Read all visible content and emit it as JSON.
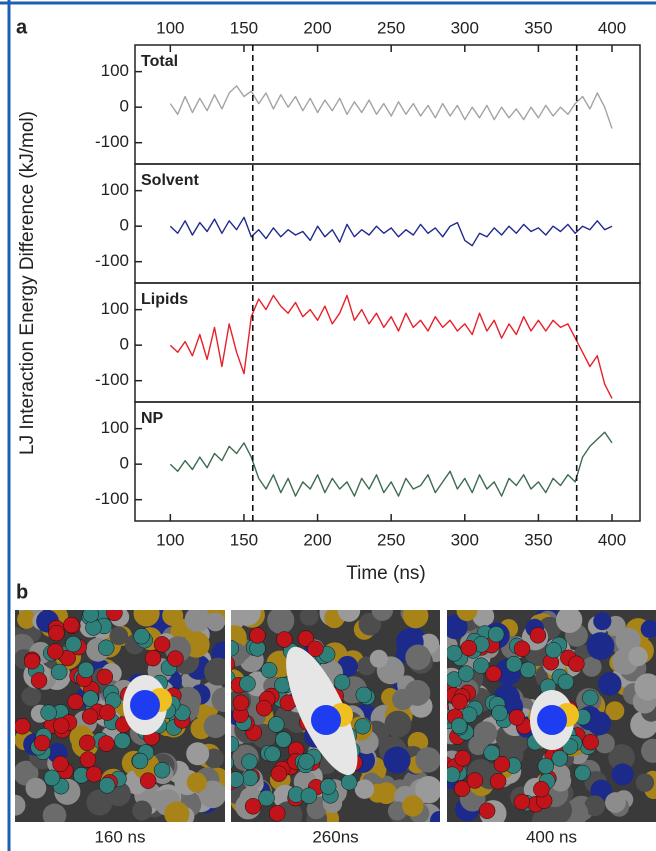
{
  "panel_labels": [
    "a",
    "b"
  ],
  "chart_data": {
    "type": "line",
    "xlabel": "Time (ns)",
    "ylabel": "LJ Interaction Energy Difference (kJ/mol)",
    "x": [
      100,
      105,
      110,
      115,
      120,
      125,
      130,
      135,
      140,
      145,
      150,
      155,
      160,
      165,
      170,
      175,
      180,
      185,
      190,
      195,
      200,
      205,
      210,
      215,
      220,
      225,
      230,
      235,
      240,
      245,
      250,
      255,
      260,
      265,
      270,
      275,
      280,
      285,
      290,
      295,
      300,
      305,
      310,
      315,
      320,
      325,
      330,
      335,
      340,
      345,
      350,
      355,
      360,
      365,
      370,
      375,
      380,
      385,
      390,
      395,
      400
    ],
    "xlim": [
      76,
      419
    ],
    "xticks": [
      100,
      150,
      200,
      250,
      300,
      350,
      400
    ],
    "ylim": [
      -160,
      175
    ],
    "yticks": [
      -100,
      0,
      100
    ],
    "vlines": [
      156,
      376
    ],
    "series": [
      {
        "name": "Total",
        "color": "#a3a3a3",
        "values": [
          10,
          -20,
          30,
          -15,
          25,
          -10,
          35,
          -5,
          40,
          60,
          30,
          45,
          10,
          40,
          -5,
          35,
          0,
          30,
          -10,
          25,
          -15,
          20,
          -10,
          25,
          -20,
          15,
          -15,
          20,
          -20,
          10,
          -25,
          15,
          -20,
          10,
          -25,
          5,
          -30,
          10,
          -25,
          5,
          -35,
          0,
          -30,
          5,
          -35,
          0,
          -30,
          -5,
          -35,
          0,
          -30,
          5,
          -25,
          0,
          -20,
          10,
          30,
          -5,
          40,
          0,
          -60
        ]
      },
      {
        "name": "Solvent",
        "color": "#1f2a8c",
        "values": [
          0,
          -20,
          15,
          -25,
          10,
          -15,
          20,
          -20,
          15,
          -10,
          25,
          -30,
          -10,
          -35,
          -5,
          -30,
          -10,
          -25,
          -15,
          -40,
          0,
          -30,
          -10,
          -45,
          5,
          -30,
          -10,
          -25,
          0,
          -20,
          -5,
          -30,
          -10,
          -25,
          5,
          -20,
          -5,
          -30,
          0,
          10,
          -40,
          -55,
          -20,
          -30,
          -5,
          -25,
          0,
          -20,
          5,
          -15,
          -5,
          -25,
          0,
          -15,
          5,
          -20,
          0,
          -10,
          15,
          -10,
          0
        ]
      },
      {
        "name": "Lipids",
        "color": "#e8202a",
        "values": [
          0,
          -20,
          10,
          -30,
          30,
          -40,
          50,
          -60,
          60,
          -20,
          -80,
          80,
          130,
          100,
          140,
          110,
          90,
          120,
          80,
          100,
          70,
          110,
          60,
          90,
          140,
          70,
          100,
          60,
          90,
          50,
          80,
          40,
          90,
          50,
          70,
          40,
          80,
          50,
          70,
          40,
          60,
          30,
          90,
          40,
          70,
          20,
          60,
          30,
          80,
          40,
          70,
          40,
          70,
          50,
          60,
          20,
          -20,
          -60,
          -30,
          -110,
          -150
        ]
      },
      {
        "name": "NP",
        "color": "#3d6b4f",
        "values": [
          0,
          -20,
          10,
          -15,
          20,
          -10,
          30,
          10,
          50,
          30,
          60,
          20,
          -40,
          -70,
          -30,
          -80,
          -40,
          -90,
          -50,
          -70,
          -30,
          -80,
          -40,
          -70,
          -50,
          -90,
          -40,
          -70,
          -30,
          -80,
          -50,
          -90,
          -40,
          -70,
          -60,
          -30,
          -80,
          -50,
          -20,
          -70,
          -40,
          -80,
          -30,
          -70,
          -50,
          -90,
          -40,
          -60,
          -30,
          -70,
          -50,
          -80,
          -40,
          -60,
          -30,
          -50,
          20,
          50,
          70,
          90,
          60
        ]
      }
    ]
  },
  "images": [
    {
      "caption": "160 ns"
    },
    {
      "caption": "260ns"
    },
    {
      "caption": "400 ns"
    }
  ]
}
